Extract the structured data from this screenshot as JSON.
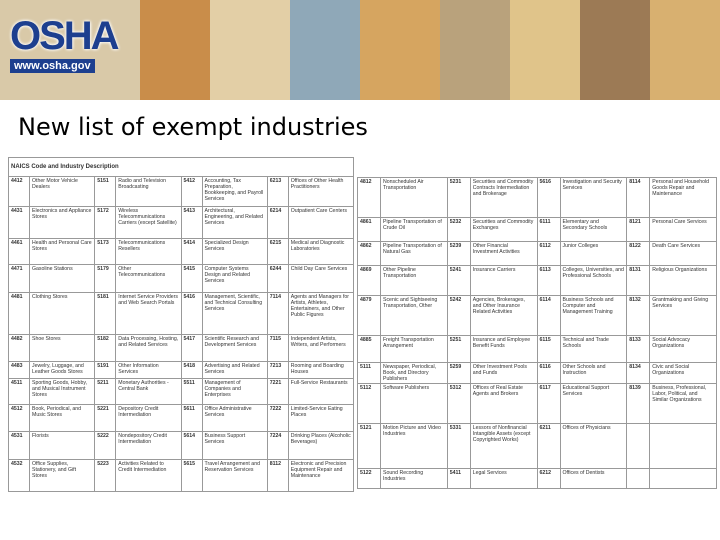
{
  "header": {
    "logo": "OSHA",
    "url": "www.osha.gov"
  },
  "title": "New list of exempt industries",
  "tables": [
    {
      "header": "NAICS Code and Industry Description",
      "rows": [
        [
          "4412",
          "Other Motor Vehicle Dealers",
          "5151",
          "Radio and Television Broadcasting",
          "5412",
          "Accounting, Tax Preparation, Bookkeeping, and Payroll Services",
          "6213",
          "Offices of Other Health Practitioners"
        ],
        [
          "4431",
          "Electronics and Appliance Stores",
          "5172",
          "Wireless Telecommunications Carriers (except Satellite)",
          "5413",
          "Architectural, Engineering, and Related Services",
          "6214",
          "Outpatient Care Centers"
        ],
        [
          "4461",
          "Health and Personal Care Stores",
          "5173",
          "Telecommunications Resellers",
          "5414",
          "Specialized Design Services",
          "6215",
          "Medical and Diagnostic Laboratories"
        ],
        [
          "4471",
          "Gasoline Stations",
          "5179",
          "Other Telecommunications",
          "5415",
          "Computer Systems Design and Related Services",
          "6244",
          "Child Day Care Services"
        ],
        [
          "4481",
          "Clothing Stores",
          "5181",
          "Internet Service Providers and Web Search Portals",
          "5416",
          "Management, Scientific, and Technical Consulting Services",
          "7114",
          "Agents and Managers for Artists, Athletes, Entertainers, and Other Public Figures"
        ],
        [
          "4482",
          "Shoe Stores",
          "5182",
          "Data Processing, Hosting, and Related Services",
          "5417",
          "Scientific Research and Development Services",
          "7115",
          "Independent Artists, Writers, and Performers"
        ],
        [
          "4483",
          "Jewelry, Luggage, and Leather Goods Stores",
          "5191",
          "Other Information Services",
          "5418",
          "Advertising and Related Services",
          "7213",
          "Rooming and Boarding Houses"
        ],
        [
          "4511",
          "Sporting Goods, Hobby, and Musical Instrument Stores",
          "5211",
          "Monetary Authorities - Central Bank",
          "5511",
          "Management of Companies and Enterprises",
          "7221",
          "Full-Service Restaurants"
        ],
        [
          "4512",
          "Book, Periodical, and Music Stores",
          "5221",
          "Depository Credit Intermediation",
          "5611",
          "Office Administrative Services",
          "7222",
          "Limited-Service Eating Places"
        ],
        [
          "4531",
          "Florists",
          "5222",
          "Nondepository Credit Intermediation",
          "5614",
          "Business Support Services",
          "7224",
          "Drinking Places (Alcoholic Beverages)"
        ],
        [
          "4532",
          "Office Supplies, Stationery, and Gift Stores",
          "5223",
          "Activities Related to Credit Intermediation",
          "5615",
          "Travel Arrangement and Reservation Services",
          "8112",
          "Electronic and Precision Equipment Repair and Maintenance"
        ]
      ]
    },
    {
      "rows": [
        [
          "4812",
          "Nonscheduled Air Transportation",
          "5231",
          "Securities and Commodity Contracts Intermediation and Brokerage",
          "5616",
          "Investigation and Security Services",
          "8114",
          "Personal and Household Goods Repair and Maintenance"
        ],
        [
          "4861",
          "Pipeline Transportation of Crude Oil",
          "5232",
          "Securities and Commodity Exchanges",
          "6111",
          "Elementary and Secondary Schools",
          "8121",
          "Personal Care Services"
        ],
        [
          "4862",
          "Pipeline Transportation of Natural Gas",
          "5239",
          "Other Financial Investment Activities",
          "6112",
          "Junior Colleges",
          "8122",
          "Death Care Services"
        ],
        [
          "4869",
          "Other Pipeline Transportation",
          "5241",
          "Insurance Carriers",
          "6113",
          "Colleges, Universities, and Professional Schools",
          "8131",
          "Religious Organizations"
        ],
        [
          "4879",
          "Scenic and Sightseeing Transportation, Other",
          "5242",
          "Agencies, Brokerages, and Other Insurance Related Activities",
          "6114",
          "Business Schools and Computer and Management Training",
          "8132",
          "Grantmaking and Giving Services"
        ],
        [
          "4885",
          "Freight Transportation Arrangement",
          "5251",
          "Insurance and Employee Benefit Funds",
          "6115",
          "Technical and Trade Schools",
          "8133",
          "Social Advocacy Organizations"
        ],
        [
          "5111",
          "Newspaper, Periodical, Book, and Directory Publishers",
          "5259",
          "Other Investment Pools and Funds",
          "6116",
          "Other Schools and Instruction",
          "8134",
          "Civic and Social Organizations"
        ],
        [
          "5112",
          "Software Publishers",
          "5312",
          "Offices of Real Estate Agents and Brokers",
          "6117",
          "Educational Support Services",
          "8139",
          "Business, Professional, Labor, Political, and Similar Organizations"
        ],
        [
          "5121",
          "Motion Picture and Video Industries",
          "5331",
          "Lessors of Nonfinancial Intangible Assets (except Copyrighted Works)",
          "6211",
          "Offices of Physicians"
        ],
        [
          "5122",
          "Sound Recording Industries",
          "5411",
          "Legal Services",
          "6212",
          "Offices of Dentists"
        ]
      ]
    }
  ]
}
